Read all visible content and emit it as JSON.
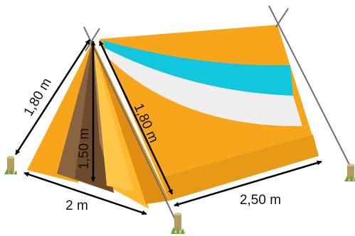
{
  "diagram": {
    "subject": "tent",
    "labels": {
      "left_edge": "1,80 m",
      "height": "1,50 m",
      "slant_side": "1,80 m",
      "front_width": "2 m",
      "length": "2,50 m"
    },
    "colors": {
      "tent_orange": "#F7A61B",
      "tent_dark_orange": "#E08E12",
      "tent_light": "#FFC648",
      "inner_dark": "#6E4A2C",
      "inner_mid": "#8A6440",
      "inner_light": "#A07A52",
      "stripe_cyan": "#11C7DF",
      "stripe_white": "#EEEEEE",
      "pole": "#6E6E6E",
      "arrow": "#000000",
      "stake": "#B89A63",
      "grass": "#6FA43A"
    }
  }
}
